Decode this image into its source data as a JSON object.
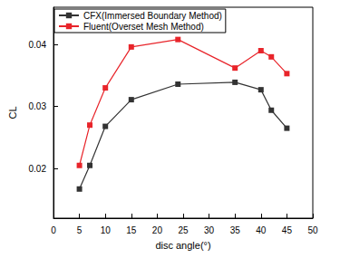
{
  "chart_data": {
    "type": "line",
    "x_label": "disc angle(°)",
    "y_label": "CL",
    "x": [
      5,
      7,
      10,
      15,
      24,
      35,
      40,
      42,
      45
    ],
    "series": [
      {
        "name": "CFX(Immersed Boundary Method)",
        "color": "#333333",
        "marker": "square",
        "line_style": "solid",
        "values": [
          0.0167,
          0.0205,
          0.0268,
          0.0311,
          0.0336,
          0.0339,
          0.0327,
          0.0294,
          0.0265
        ]
      },
      {
        "name": "Fluent(Overset Mesh Method)",
        "color": "#e8242a",
        "marker": "square",
        "line_style": "solid",
        "values": [
          0.0205,
          0.027,
          0.033,
          0.0396,
          0.0408,
          0.0362,
          0.039,
          0.038,
          0.0353
        ]
      }
    ],
    "xlim": [
      0,
      50
    ],
    "xticks": [
      0,
      5,
      10,
      15,
      20,
      25,
      30,
      35,
      40,
      45,
      50
    ],
    "ylim": [
      0.012,
      0.046
    ],
    "yticks": [
      0.02,
      0.03,
      0.04
    ],
    "grid": false,
    "legend": "upper left"
  }
}
